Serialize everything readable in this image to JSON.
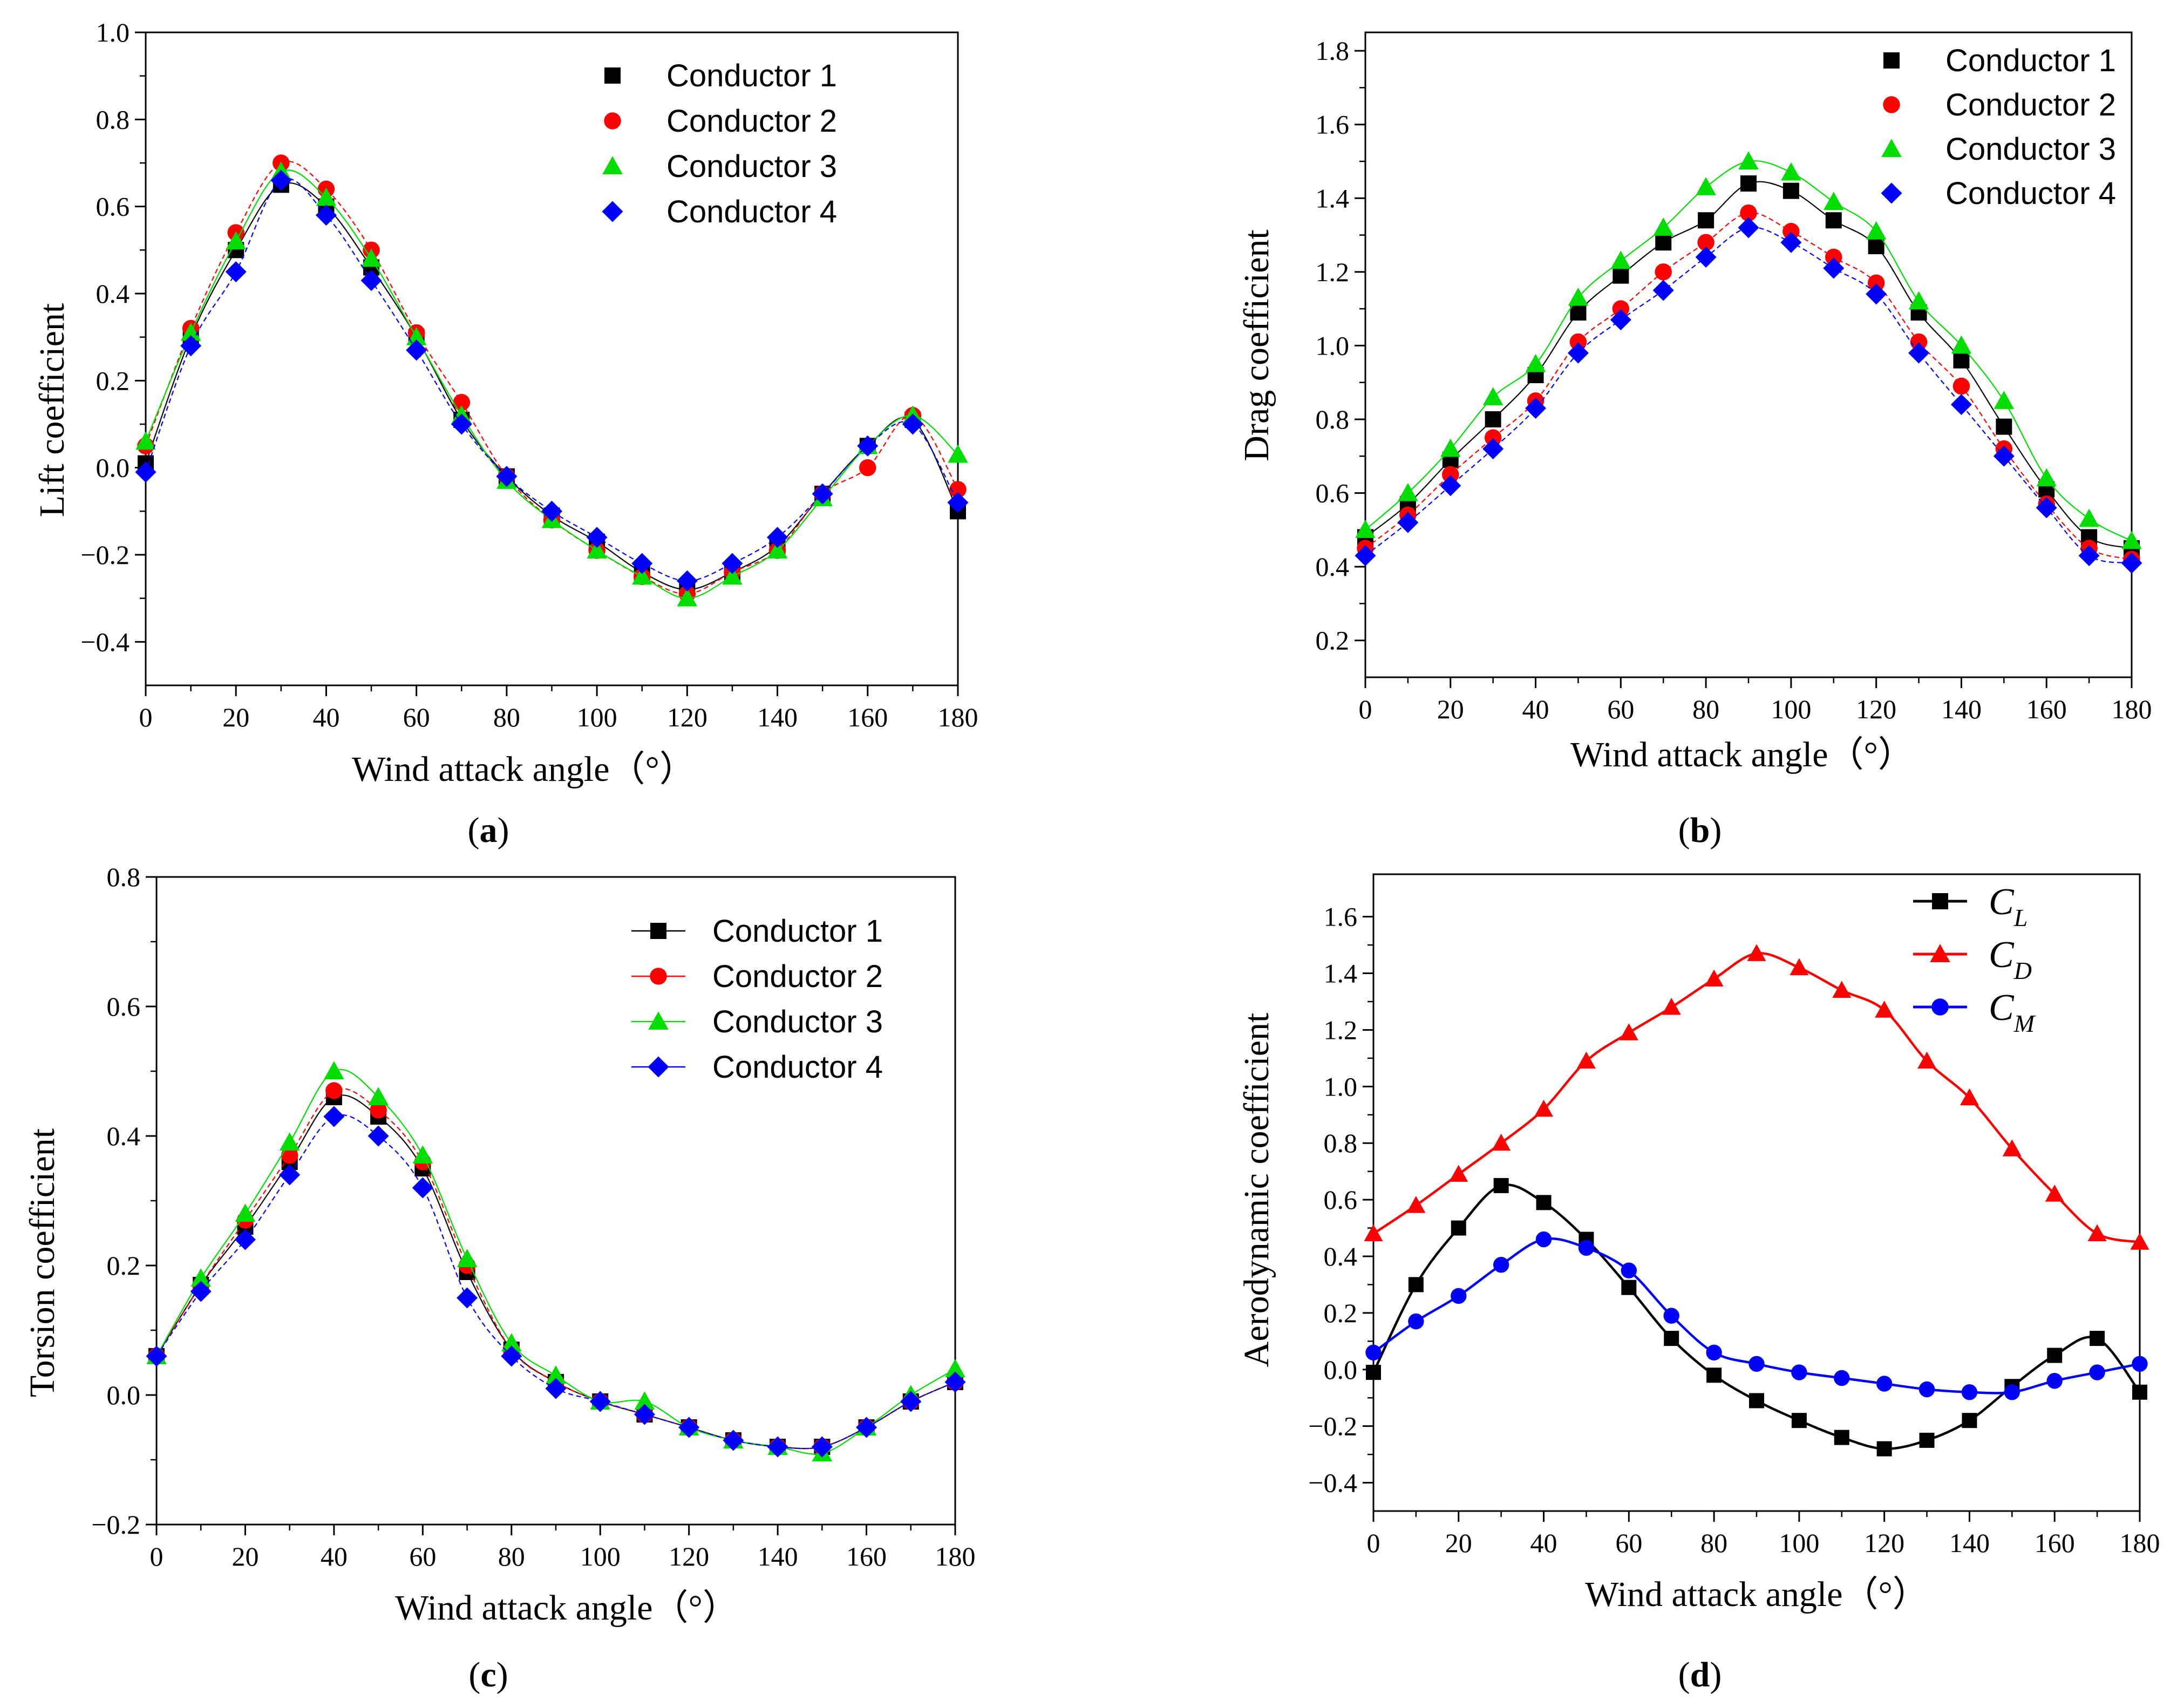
{
  "chart_data": [
    {
      "id": "a",
      "type": "line",
      "panel_label": "a",
      "xlabel": "Wind attack angle（°）",
      "ylabel": "Lift coefficient",
      "xlim": [
        0,
        180
      ],
      "ylim": [
        -0.5,
        1.0
      ],
      "xticks": [
        0,
        20,
        40,
        60,
        80,
        100,
        120,
        140,
        160,
        180
      ],
      "yticks": [
        -0.4,
        -0.2,
        0.0,
        0.2,
        0.4,
        0.6,
        0.8,
        1.0
      ],
      "ytick_labels": [
        "−0.4",
        "−0.2",
        "0.0",
        "0.2",
        "0.4",
        "0.6",
        "0.8",
        "1.0"
      ],
      "legend": "top-right",
      "x": [
        0,
        10,
        20,
        30,
        40,
        50,
        60,
        70,
        80,
        90,
        100,
        110,
        120,
        130,
        140,
        150,
        160,
        170,
        180
      ],
      "series": [
        {
          "name": "Conductor 1",
          "color": "#000000",
          "marker": "square",
          "values": [
            0.01,
            0.3,
            0.5,
            0.65,
            0.6,
            0.46,
            0.3,
            0.11,
            -0.02,
            -0.11,
            -0.17,
            -0.24,
            -0.28,
            -0.24,
            -0.18,
            -0.06,
            0.05,
            0.11,
            -0.1
          ]
        },
        {
          "name": "Conductor 2",
          "color": "#ff0000",
          "marker": "circle",
          "values": [
            0.05,
            0.32,
            0.54,
            0.7,
            0.64,
            0.5,
            0.31,
            0.15,
            -0.02,
            -0.12,
            -0.19,
            -0.25,
            -0.29,
            -0.24,
            -0.19,
            -0.06,
            0.0,
            0.12,
            -0.05
          ]
        },
        {
          "name": "Conductor 3",
          "color": "#00dd00",
          "marker": "triangle",
          "values": [
            0.06,
            0.31,
            0.52,
            0.68,
            0.62,
            0.48,
            0.3,
            0.12,
            -0.03,
            -0.12,
            -0.19,
            -0.25,
            -0.3,
            -0.25,
            -0.19,
            -0.07,
            0.05,
            0.12,
            0.03
          ]
        },
        {
          "name": "Conductor 4",
          "color": "#0000ff",
          "marker": "diamond",
          "values": [
            -0.01,
            0.28,
            0.45,
            0.66,
            0.58,
            0.43,
            0.27,
            0.1,
            -0.02,
            -0.1,
            -0.16,
            -0.22,
            -0.26,
            -0.22,
            -0.16,
            -0.06,
            0.05,
            0.1,
            -0.08
          ]
        }
      ]
    },
    {
      "id": "b",
      "type": "line",
      "panel_label": "b",
      "xlabel": "Wind attack angle（°）",
      "ylabel": "Drag coefficient",
      "xlim": [
        0,
        180
      ],
      "ylim": [
        0.1,
        1.85
      ],
      "xticks": [
        0,
        20,
        40,
        60,
        80,
        100,
        120,
        140,
        160,
        180
      ],
      "yticks": [
        0.2,
        0.4,
        0.6,
        0.8,
        1.0,
        1.2,
        1.4,
        1.6,
        1.8
      ],
      "ytick_labels": [
        "0.2",
        "0.4",
        "0.6",
        "0.8",
        "1.0",
        "1.2",
        "1.4",
        "1.6",
        "1.8"
      ],
      "legend": "top-right",
      "x": [
        0,
        10,
        20,
        30,
        40,
        50,
        60,
        70,
        80,
        90,
        100,
        110,
        120,
        130,
        140,
        150,
        160,
        170,
        180
      ],
      "series": [
        {
          "name": "Conductor 1",
          "color": "#000000",
          "marker": "square",
          "values": [
            0.48,
            0.57,
            0.69,
            0.8,
            0.92,
            1.09,
            1.19,
            1.28,
            1.34,
            1.44,
            1.42,
            1.34,
            1.27,
            1.09,
            0.96,
            0.78,
            0.61,
            0.48,
            0.45
          ]
        },
        {
          "name": "Conductor 2",
          "color": "#ff0000",
          "marker": "circle",
          "values": [
            0.45,
            0.54,
            0.65,
            0.75,
            0.85,
            1.01,
            1.1,
            1.2,
            1.28,
            1.36,
            1.31,
            1.24,
            1.17,
            1.01,
            0.89,
            0.72,
            0.57,
            0.45,
            0.42
          ]
        },
        {
          "name": "Conductor 3",
          "color": "#00dd00",
          "marker": "triangle",
          "values": [
            0.5,
            0.6,
            0.72,
            0.86,
            0.95,
            1.13,
            1.23,
            1.32,
            1.43,
            1.5,
            1.47,
            1.39,
            1.31,
            1.12,
            1.0,
            0.85,
            0.64,
            0.53,
            0.47
          ]
        },
        {
          "name": "Conductor 4",
          "color": "#0000ff",
          "marker": "diamond",
          "values": [
            0.43,
            0.52,
            0.62,
            0.72,
            0.83,
            0.98,
            1.07,
            1.15,
            1.24,
            1.32,
            1.28,
            1.21,
            1.14,
            0.98,
            0.84,
            0.7,
            0.56,
            0.43,
            0.41
          ]
        }
      ]
    },
    {
      "id": "c",
      "type": "line",
      "panel_label": "c",
      "xlabel": "Wind attack angle（°）",
      "ylabel": "Torsion coefficient",
      "xlim": [
        0,
        180
      ],
      "ylim": [
        -0.2,
        0.8
      ],
      "xticks": [
        0,
        20,
        40,
        60,
        80,
        100,
        120,
        140,
        160,
        180
      ],
      "yticks": [
        -0.2,
        0.0,
        0.2,
        0.4,
        0.6,
        0.8
      ],
      "ytick_labels": [
        "−0.2",
        "0.0",
        "0.2",
        "0.4",
        "0.6",
        "0.8"
      ],
      "legend": "top-right",
      "x": [
        0,
        10,
        20,
        30,
        40,
        50,
        60,
        70,
        80,
        90,
        100,
        110,
        120,
        130,
        140,
        150,
        160,
        170,
        180
      ],
      "series": [
        {
          "name": "Conductor 1",
          "color": "#000000",
          "marker": "square",
          "values": [
            0.06,
            0.17,
            0.26,
            0.36,
            0.46,
            0.43,
            0.35,
            0.19,
            0.07,
            0.02,
            -0.01,
            -0.03,
            -0.05,
            -0.07,
            -0.08,
            -0.08,
            -0.05,
            -0.01,
            0.02
          ]
        },
        {
          "name": "Conductor 2",
          "color": "#ff0000",
          "marker": "circle",
          "values": [
            0.06,
            0.17,
            0.27,
            0.37,
            0.47,
            0.44,
            0.36,
            0.2,
            0.07,
            0.02,
            -0.01,
            -0.03,
            -0.05,
            -0.07,
            -0.08,
            -0.08,
            -0.05,
            -0.01,
            0.02
          ]
        },
        {
          "name": "Conductor 3",
          "color": "#00dd00",
          "marker": "triangle",
          "values": [
            0.06,
            0.18,
            0.28,
            0.39,
            0.5,
            0.46,
            0.37,
            0.21,
            0.08,
            0.03,
            -0.01,
            -0.01,
            -0.05,
            -0.07,
            -0.08,
            -0.09,
            -0.05,
            0.0,
            0.04
          ]
        },
        {
          "name": "Conductor 4",
          "color": "#0000ff",
          "marker": "diamond",
          "values": [
            0.06,
            0.16,
            0.24,
            0.34,
            0.43,
            0.4,
            0.32,
            0.15,
            0.06,
            0.01,
            -0.01,
            -0.03,
            -0.05,
            -0.07,
            -0.08,
            -0.08,
            -0.05,
            -0.01,
            0.02
          ]
        }
      ]
    },
    {
      "id": "d",
      "type": "line",
      "panel_label": "d",
      "xlabel": "Wind attack angle（°）",
      "ylabel": "Aerodynamic coefficient",
      "xlim": [
        0,
        180
      ],
      "ylim": [
        -0.5,
        1.75
      ],
      "xticks": [
        0,
        20,
        40,
        60,
        80,
        100,
        120,
        140,
        160,
        180
      ],
      "yticks": [
        -0.4,
        -0.2,
        0.0,
        0.2,
        0.4,
        0.6,
        0.8,
        1.0,
        1.2,
        1.4,
        1.6
      ],
      "ytick_labels": [
        "−0.4",
        "−0.2",
        "0.0",
        "0.2",
        "0.4",
        "0.6",
        "0.8",
        "1.0",
        "1.2",
        "1.4",
        "1.6"
      ],
      "legend": "top-right",
      "x": [
        0,
        10,
        20,
        30,
        40,
        50,
        60,
        70,
        80,
        90,
        100,
        110,
        120,
        130,
        140,
        150,
        160,
        170,
        180
      ],
      "series": [
        {
          "name": "C",
          "subscript": "L",
          "color": "#000000",
          "marker": "square",
          "values": [
            -0.01,
            0.3,
            0.5,
            0.65,
            0.59,
            0.46,
            0.29,
            0.11,
            -0.02,
            -0.11,
            -0.18,
            -0.24,
            -0.28,
            -0.25,
            -0.18,
            -0.06,
            0.05,
            0.11,
            -0.08
          ]
        },
        {
          "name": "C",
          "subscript": "D",
          "color": "#ff0000",
          "marker": "triangle",
          "values": [
            0.48,
            0.58,
            0.69,
            0.8,
            0.92,
            1.09,
            1.19,
            1.28,
            1.38,
            1.47,
            1.42,
            1.34,
            1.27,
            1.09,
            0.96,
            0.78,
            0.62,
            0.48,
            0.45
          ]
        },
        {
          "name": "C",
          "subscript": "M",
          "color": "#0000ff",
          "marker": "circle",
          "values": [
            0.06,
            0.17,
            0.26,
            0.37,
            0.46,
            0.43,
            0.35,
            0.19,
            0.06,
            0.02,
            -0.01,
            -0.03,
            -0.05,
            -0.07,
            -0.08,
            -0.08,
            -0.04,
            -0.01,
            0.02
          ]
        }
      ]
    }
  ]
}
